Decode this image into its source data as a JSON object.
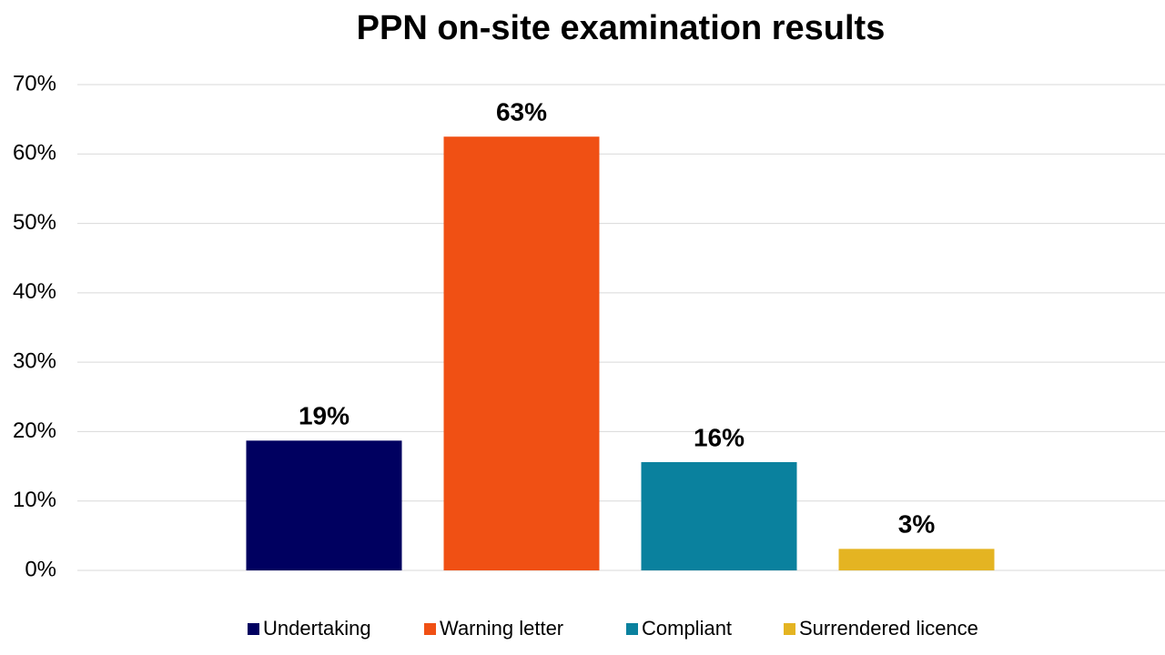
{
  "chart_data": {
    "type": "bar",
    "title": "PPN on-site examination results",
    "categories": [
      null
    ],
    "series": [
      {
        "name": "Undertaking",
        "color": "#000060",
        "values": [
          18.7
        ],
        "value_labels": [
          "19%"
        ]
      },
      {
        "name": "Warning letter",
        "color": "#f05014",
        "values": [
          62.5
        ],
        "value_labels": [
          "63%"
        ]
      },
      {
        "name": "Compliant",
        "color": "#0a819e",
        "values": [
          15.6
        ],
        "value_labels": [
          "16%"
        ]
      },
      {
        "name": "Surrendered licence",
        "color": "#e4b422",
        "values": [
          3.1
        ],
        "value_labels": [
          "3%"
        ]
      }
    ],
    "ylim": [
      0,
      70
    ],
    "yticks": [
      {
        "value": 0,
        "label": "0%"
      },
      {
        "value": 10,
        "label": "10%"
      },
      {
        "value": 20,
        "label": "20%"
      },
      {
        "value": 30,
        "label": "30%"
      },
      {
        "value": 40,
        "label": "40%"
      },
      {
        "value": 50,
        "label": "50%"
      },
      {
        "value": 60,
        "label": "60%"
      },
      {
        "value": 70,
        "label": "70%"
      }
    ],
    "grid": true,
    "legend": "bottom"
  }
}
